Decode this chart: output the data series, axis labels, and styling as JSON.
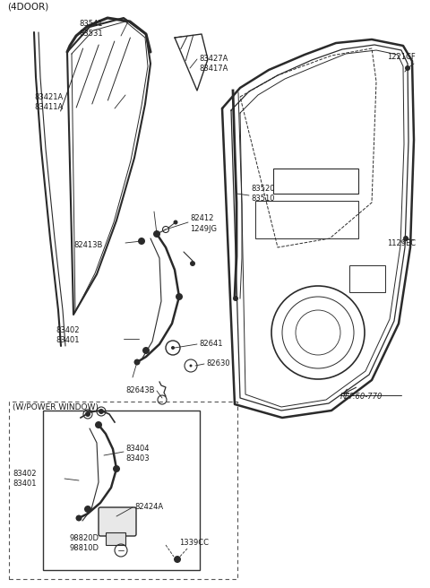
{
  "background_color": "#ffffff",
  "line_color": "#2a2a2a",
  "text_color": "#1a1a1a",
  "header": "(4DOOR)",
  "ref_text": "REF.60-770",
  "power_window_label": "(W/POWER WINDOW)"
}
